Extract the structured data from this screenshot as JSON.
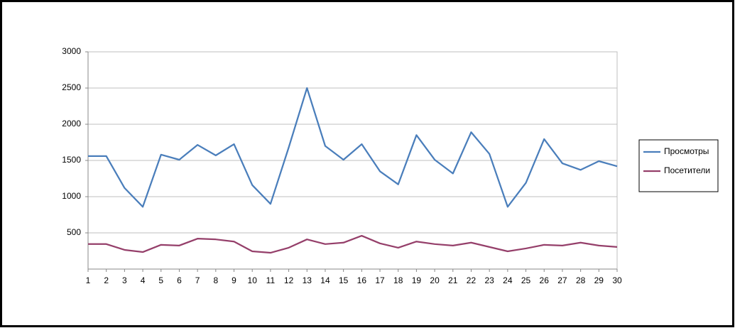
{
  "chart_data": {
    "type": "line",
    "categories": [
      "1",
      "2",
      "3",
      "4",
      "5",
      "6",
      "7",
      "8",
      "9",
      "10",
      "11",
      "12",
      "13",
      "14",
      "15",
      "16",
      "17",
      "18",
      "19",
      "20",
      "21",
      "22",
      "23",
      "24",
      "25",
      "26",
      "27",
      "28",
      "29",
      "30"
    ],
    "series": [
      {
        "name": "Просмотры",
        "color": "#4a7ebb",
        "values": [
          1560,
          1560,
          1120,
          860,
          1580,
          1510,
          1715,
          1570,
          1725,
          1160,
          900,
          1680,
          2500,
          1700,
          1510,
          1725,
          1350,
          1170,
          1850,
          1510,
          1320,
          1890,
          1590,
          860,
          1190,
          1795,
          1460,
          1370,
          1490,
          1420
        ]
      },
      {
        "name": "Посетители",
        "color": "#953f6a",
        "values": [
          345,
          345,
          265,
          235,
          335,
          325,
          420,
          410,
          380,
          245,
          225,
          295,
          410,
          345,
          365,
          460,
          355,
          295,
          380,
          345,
          325,
          365,
          305,
          245,
          285,
          335,
          325,
          365,
          325,
          305
        ]
      }
    ],
    "ylim": [
      0,
      3000
    ],
    "yticks": [
      500,
      1000,
      1500,
      2000,
      2500,
      3000
    ],
    "grid": true,
    "legend": "right"
  }
}
